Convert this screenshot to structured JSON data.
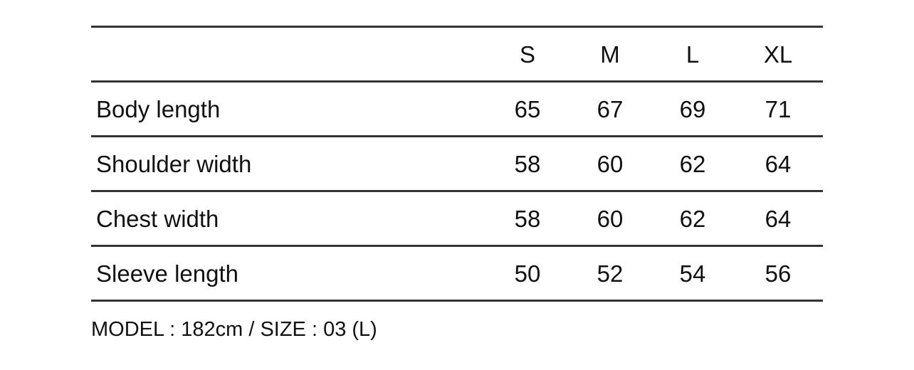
{
  "header": {
    "sizes": [
      "S",
      "M",
      "L",
      "XL"
    ]
  },
  "rows": [
    {
      "label": "Body length",
      "values": [
        "65",
        "67",
        "69",
        "71"
      ]
    },
    {
      "label": "Shoulder width",
      "values": [
        "58",
        "60",
        "62",
        "64"
      ]
    },
    {
      "label": "Chest width",
      "values": [
        "58",
        "60",
        "62",
        "64"
      ]
    },
    {
      "label": "Sleeve length",
      "values": [
        "50",
        "52",
        "54",
        "56"
      ]
    }
  ],
  "note": "MODEL : 182cm / SIZE : 03 (L)"
}
